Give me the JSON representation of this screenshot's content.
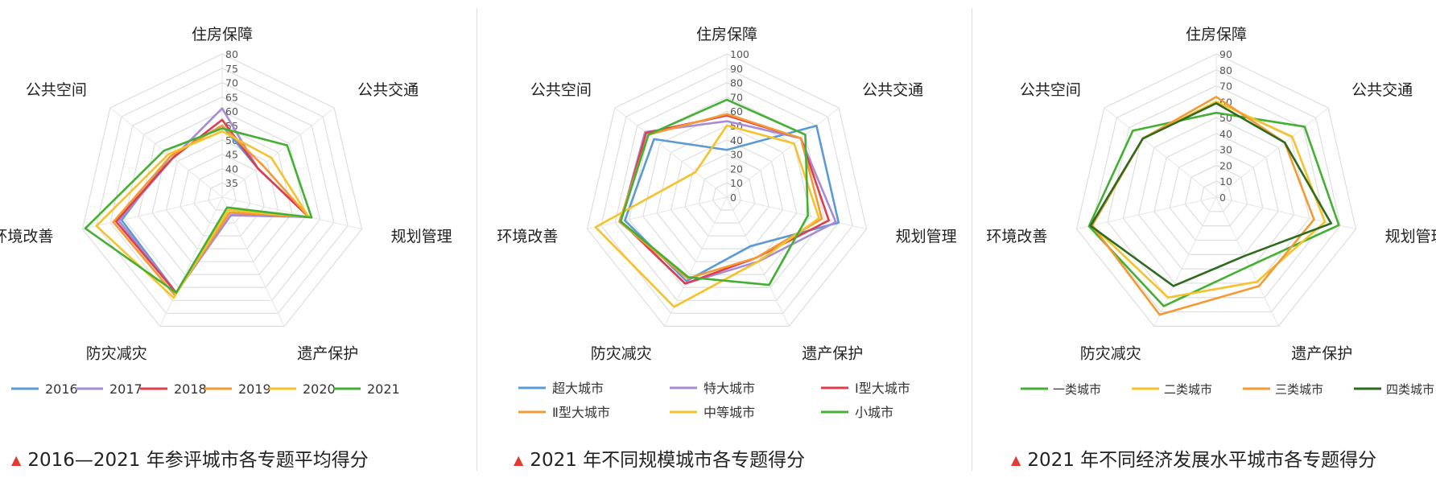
{
  "chart_data": [
    {
      "type": "radar",
      "title": "2016—2021 年参评城市各专题平均得分",
      "axes": [
        "住房保障",
        "公共交通",
        "规划管理",
        "遗产保护",
        "防灾减灾",
        "环境改善",
        "公共空间"
      ],
      "scale": {
        "min": 30,
        "max": 80,
        "ticks": [
          35,
          40,
          45,
          50,
          55,
          60,
          65,
          70,
          75,
          80
        ]
      },
      "series": [
        {
          "name": "2016",
          "color": "#5b9bd5",
          "values": [
            55,
            46,
            61,
            37,
            67,
            66,
            53
          ]
        },
        {
          "name": "2017",
          "color": "#a58bd8",
          "values": [
            61,
            46,
            61,
            37,
            67,
            67,
            52
          ]
        },
        {
          "name": "2018",
          "color": "#e03c4b",
          "values": [
            57,
            46,
            61,
            36,
            67,
            68,
            52
          ]
        },
        {
          "name": "2019",
          "color": "#f39a35",
          "values": [
            55,
            48,
            61,
            36,
            68,
            69,
            53
          ]
        },
        {
          "name": "2020",
          "color": "#f6c22a",
          "values": [
            53,
            52,
            61,
            35,
            69,
            75,
            54
          ]
        },
        {
          "name": "2021",
          "color": "#44b033",
          "values": [
            54,
            59,
            62,
            34,
            67,
            79,
            56
          ]
        }
      ],
      "legend_position": "bottom",
      "grid": true
    },
    {
      "type": "radar",
      "title": "2021 年不同规模城市各专题得分",
      "axes": [
        "住房保障",
        "公共交通",
        "规划管理",
        "遗产保护",
        "防灾减灾",
        "环境改善",
        "公共空间"
      ],
      "scale": {
        "min": 0,
        "max": 100,
        "ticks": [
          0,
          10,
          20,
          30,
          40,
          50,
          60,
          70,
          80,
          90,
          100
        ]
      },
      "series": [
        {
          "name": "超大城市",
          "color": "#5b9bd5",
          "values": [
            33,
            80,
            80,
            38,
            65,
            73,
            65
          ]
        },
        {
          "name": "特大城市",
          "color": "#a58bd8",
          "values": [
            53,
            66,
            78,
            50,
            67,
            76,
            73
          ]
        },
        {
          "name": "Ⅰ型大城市",
          "color": "#e03c4b",
          "values": [
            57,
            66,
            73,
            47,
            67,
            76,
            72
          ]
        },
        {
          "name": "Ⅱ型大城市",
          "color": "#f39a35",
          "values": [
            58,
            66,
            68,
            47,
            63,
            77,
            70
          ]
        },
        {
          "name": "中等城市",
          "color": "#f6c22a",
          "values": [
            50,
            60,
            66,
            50,
            85,
            94,
            28
          ]
        },
        {
          "name": "小城市",
          "color": "#44b033",
          "values": [
            68,
            70,
            58,
            68,
            62,
            76,
            70
          ]
        }
      ],
      "legend_position": "bottom",
      "grid": true
    },
    {
      "type": "radar",
      "title": "2021 年不同经济发展水平城市各专题得分",
      "axes": [
        "住房保障",
        "公共交通",
        "规划管理",
        "遗产保护",
        "防灾减灾",
        "环境改善",
        "公共空间"
      ],
      "scale": {
        "min": 0,
        "max": 90,
        "ticks": [
          0,
          10,
          20,
          30,
          40,
          50,
          60,
          70,
          80,
          90
        ]
      },
      "series": [
        {
          "name": "一类城市",
          "color": "#44b033",
          "values": [
            53,
            71,
            79,
            48,
            76,
            82,
            67
          ]
        },
        {
          "name": "二类城市",
          "color": "#f6c22a",
          "values": [
            60,
            61,
            70,
            59,
            70,
            80,
            59
          ]
        },
        {
          "name": "三类城市",
          "color": "#f39a35",
          "values": [
            63,
            55,
            63,
            62,
            82,
            80,
            59
          ]
        },
        {
          "name": "四类城市",
          "color": "#2e6a1f",
          "values": [
            59,
            55,
            74,
            41,
            62,
            81,
            59
          ]
        }
      ],
      "legend_position": "bottom",
      "grid": true
    }
  ]
}
